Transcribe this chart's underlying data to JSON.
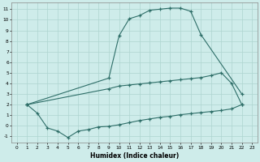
{
  "xlabel": "Humidex (Indice chaleur)",
  "bg_color": "#ceecea",
  "grid_color": "#aed4d0",
  "line_color": "#2e6e68",
  "xlim": [
    -0.5,
    23.5
  ],
  "ylim": [
    -1.6,
    11.6
  ],
  "xticks": [
    0,
    1,
    2,
    3,
    4,
    5,
    6,
    7,
    8,
    9,
    10,
    11,
    12,
    13,
    14,
    15,
    16,
    17,
    18,
    19,
    20,
    21,
    22,
    23
  ],
  "yticks": [
    -1,
    0,
    1,
    2,
    3,
    4,
    5,
    6,
    7,
    8,
    9,
    10,
    11
  ],
  "curve1_x": [
    1,
    2,
    3,
    4,
    5,
    6,
    7,
    8,
    9,
    10,
    11,
    12,
    13,
    14,
    15,
    16,
    17,
    18,
    19,
    20,
    21,
    22
  ],
  "curve1_y": [
    2.0,
    1.2,
    -0.2,
    -0.5,
    -1.1,
    -0.5,
    -0.35,
    -0.1,
    -0.05,
    0.1,
    0.3,
    0.5,
    0.65,
    0.8,
    0.9,
    1.05,
    1.15,
    1.25,
    1.35,
    1.45,
    1.6,
    2.0
  ],
  "curve2_x": [
    1,
    9,
    10,
    11,
    12,
    13,
    14,
    15,
    16,
    17,
    18,
    22
  ],
  "curve2_y": [
    2.0,
    4.5,
    8.5,
    10.1,
    10.4,
    10.9,
    11.0,
    11.1,
    11.1,
    10.8,
    8.6,
    3.0
  ],
  "curve3_x": [
    1,
    9,
    10,
    11,
    12,
    13,
    14,
    15,
    16,
    17,
    18,
    19,
    20,
    21,
    22
  ],
  "curve3_y": [
    2.0,
    3.5,
    3.75,
    3.85,
    3.95,
    4.05,
    4.15,
    4.25,
    4.35,
    4.45,
    4.55,
    4.75,
    5.0,
    4.0,
    2.0
  ]
}
